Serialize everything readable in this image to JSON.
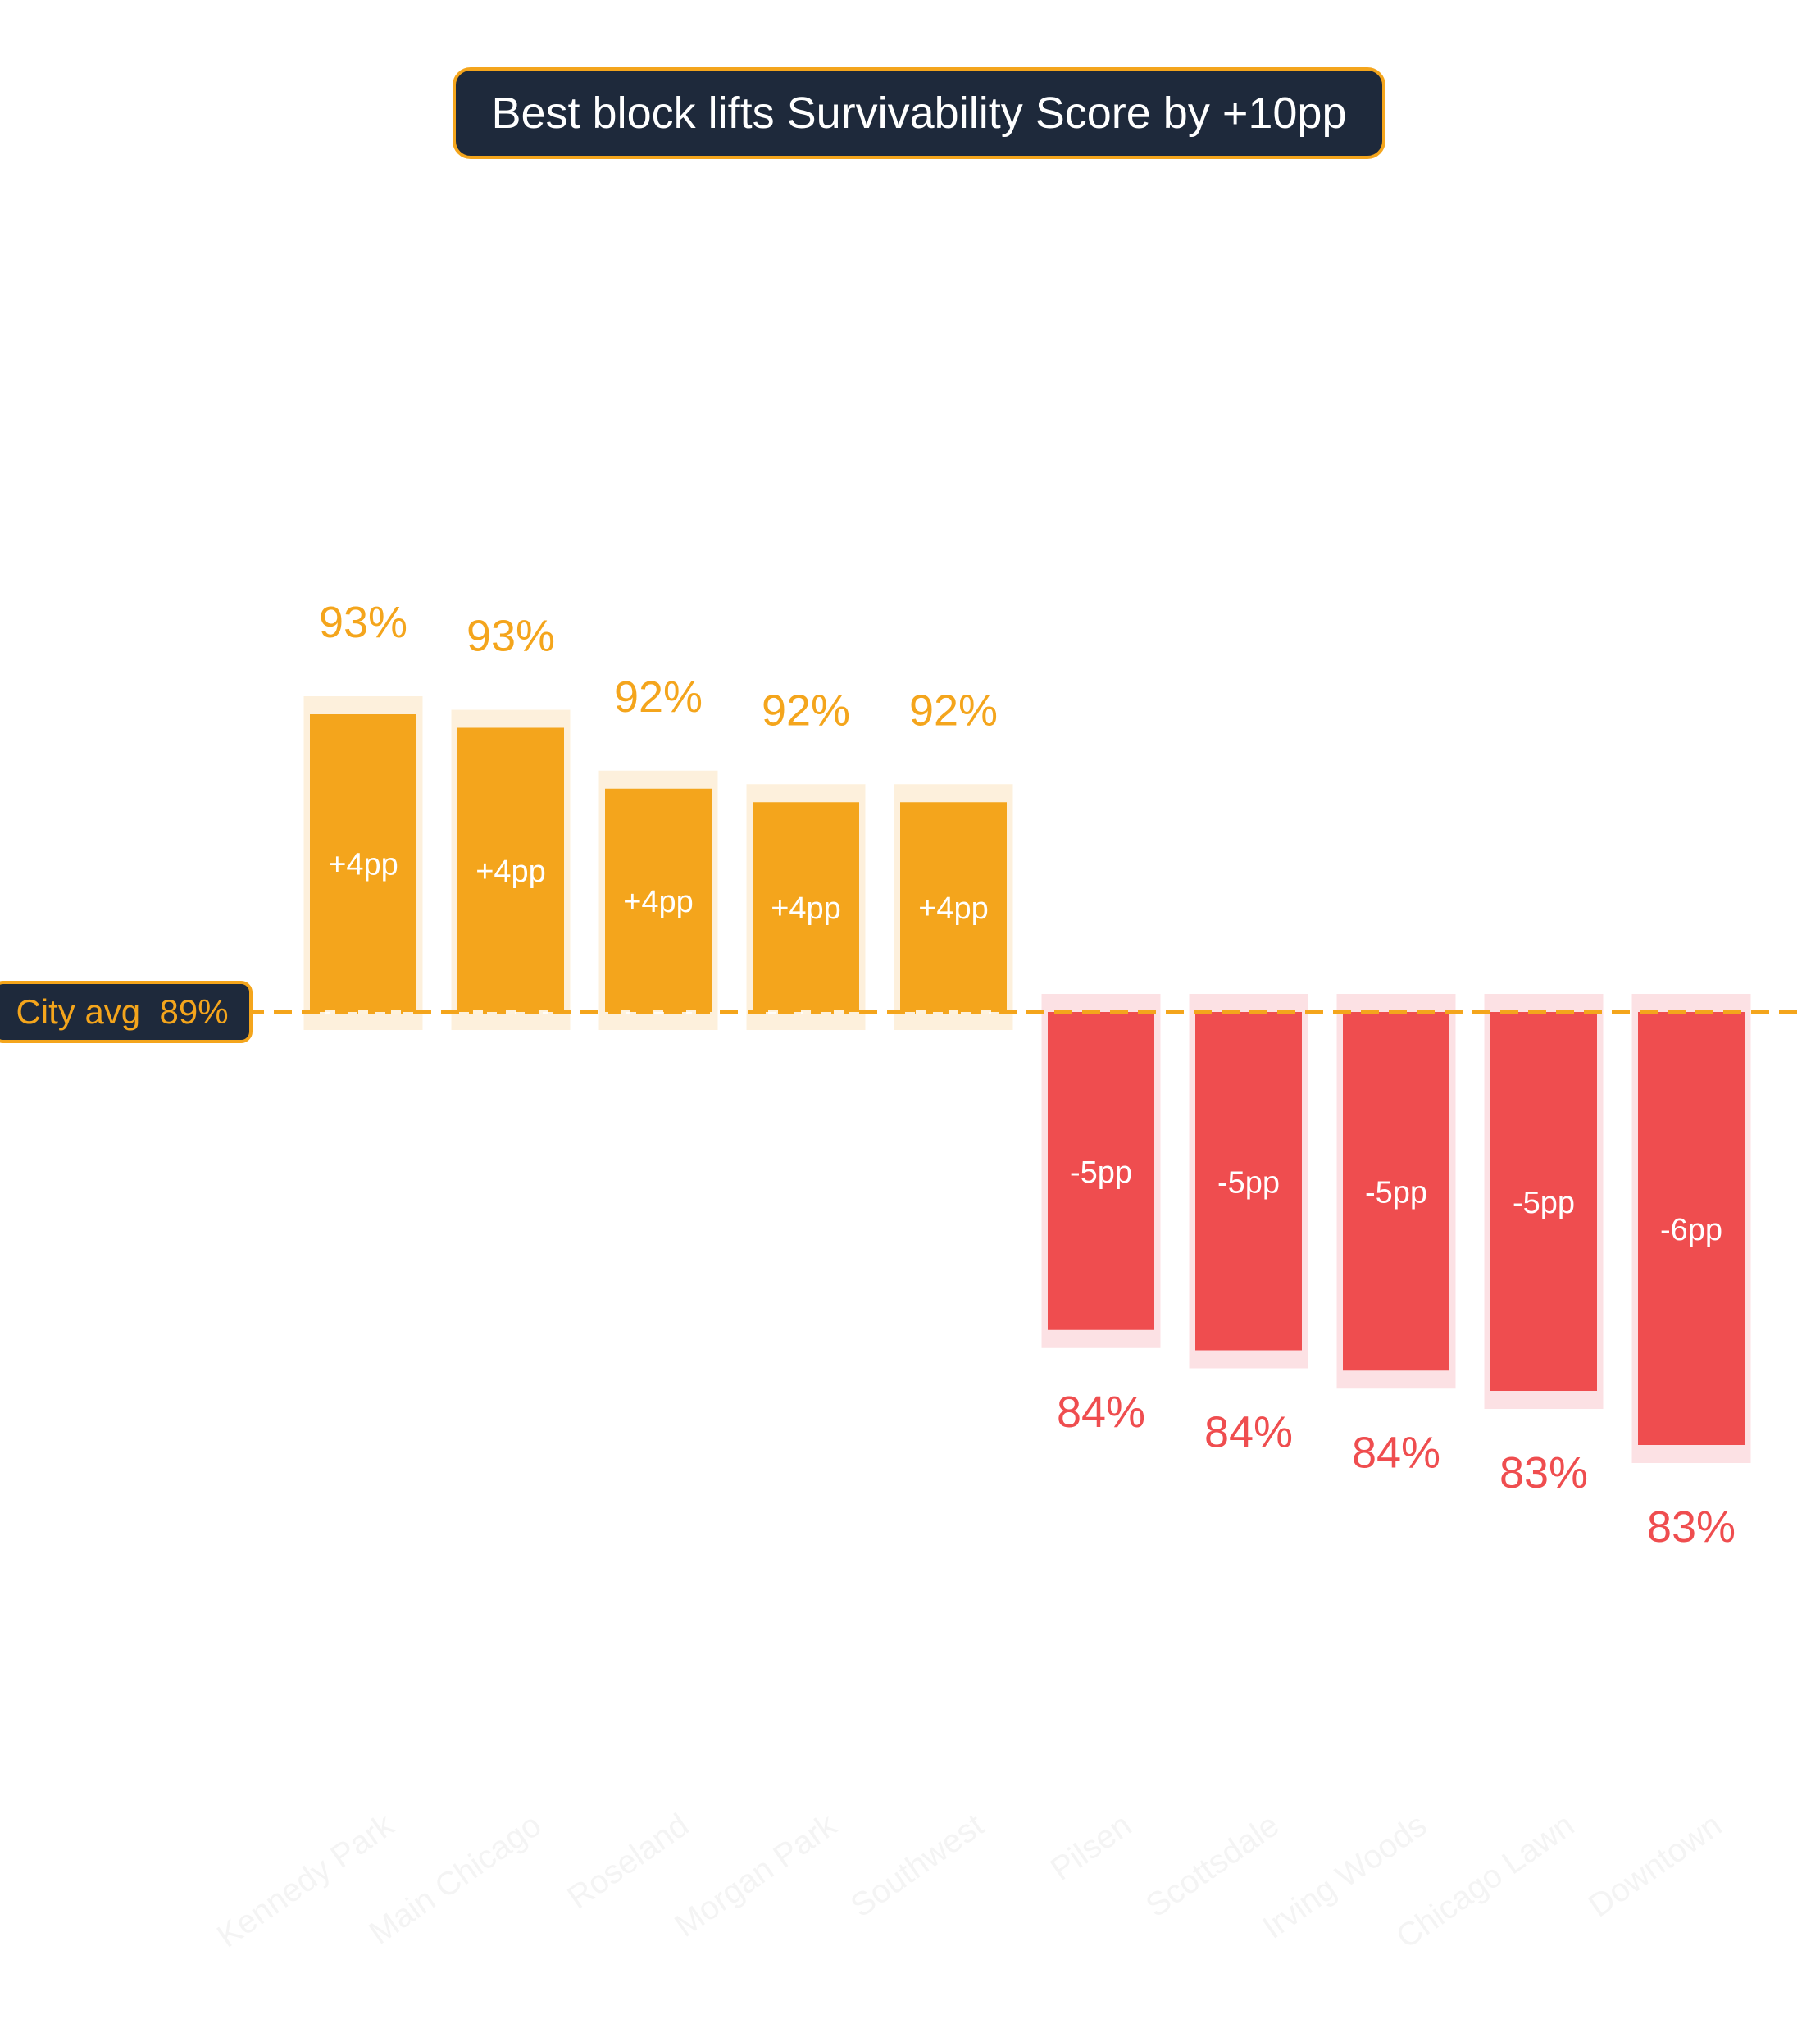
{
  "chart_data": {
    "type": "bar",
    "title": "Best block lifts Survivability Score by +10pp",
    "reference_line": {
      "label": "City avg  89%",
      "value": 89
    },
    "categories": [
      "Kennedy Park",
      "Main Chicago",
      "Roseland",
      "Morgan Park",
      "Southwest",
      "Pilsen",
      "Scottsdale",
      "Irving Woods",
      "Chicago Lawn",
      "Downtown"
    ],
    "values": [
      93.4,
      93.2,
      92.3,
      92.1,
      92.1,
      84.3,
      84.0,
      83.7,
      83.4,
      82.6
    ],
    "value_labels": [
      "93%",
      "93%",
      "92%",
      "92%",
      "92%",
      "84%",
      "84%",
      "84%",
      "83%",
      "83%"
    ],
    "delta_labels": [
      "+4pp",
      "+4pp",
      "+4pp",
      "+4pp",
      "+4pp",
      "-5pp",
      "-5pp",
      "-5pp",
      "-5pp",
      "-6pp"
    ],
    "colors": {
      "positive": "#f4a51c",
      "positive_glow": "#fdf0dc",
      "negative": "#ef4d4f",
      "negative_glow": "#fce1e4",
      "label_dark": "#1e293b",
      "category_text": "#f4f4f4"
    },
    "grid": false,
    "legend": "none"
  }
}
